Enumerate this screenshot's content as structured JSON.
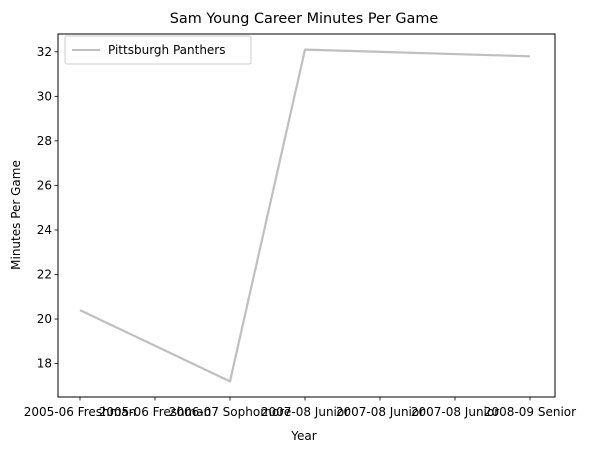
{
  "chart_data": {
    "type": "line",
    "title": "Sam Young  Career Minutes Per Game",
    "xlabel": "Year",
    "ylabel": "Minutes Per Game",
    "xticks": [
      "2005-06 Freshman",
      "2005-06 Freshman",
      "2006-07 Sophomore",
      "2007-08 Junior",
      "2007-08 Junior",
      "2007-08 Junior",
      "2008-09 Senior"
    ],
    "yticks": [
      18,
      20,
      22,
      24,
      26,
      28,
      30,
      32
    ],
    "ylim": [
      16.5,
      32.8
    ],
    "grid": false,
    "legend_position": "upper-left",
    "series": [
      {
        "name": "Pittsburgh Panthers",
        "color": "#bfbfbf",
        "points": [
          {
            "x": "2005-06 Freshman",
            "y": 20.4
          },
          {
            "x": "2006-07 Sophomore",
            "y": 17.2
          },
          {
            "x": "2007-08 Junior",
            "y": 32.1
          },
          {
            "x": "2008-09 Senior",
            "y": 31.8
          }
        ]
      }
    ]
  }
}
